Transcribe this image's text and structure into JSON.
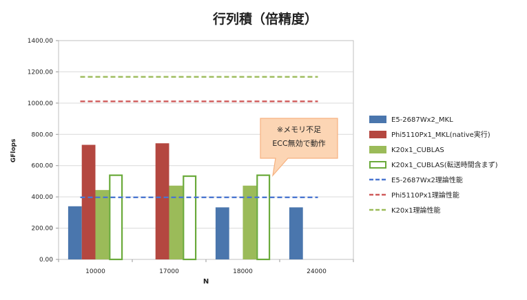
{
  "chart_data": {
    "type": "bar",
    "title": "行列積（倍精度）",
    "xlabel": "N",
    "ylabel": "GFlops",
    "categories": [
      "10000",
      "17000",
      "18000",
      "24000"
    ],
    "ylim": [
      0,
      1400
    ],
    "yticks": [
      "0.00",
      "200.00",
      "400.00",
      "600.00",
      "800.00",
      "1000.00",
      "1200.00",
      "1400.00"
    ],
    "grid": true,
    "legend_position": "right",
    "series": [
      {
        "name": "E5-2687Wx2_MKL",
        "style": "bar",
        "color": "#4a76ad",
        "values": [
          340,
          null,
          333,
          333
        ]
      },
      {
        "name": "Phi5110Px1_MKL(native実行)",
        "style": "bar",
        "color": "#b44740",
        "values": [
          733,
          743,
          null,
          null
        ]
      },
      {
        "name": "K20x1_CUBLAS",
        "style": "bar",
        "color": "#9bbb59",
        "values": [
          444,
          472,
          472,
          null
        ]
      },
      {
        "name": "K20x1_CUBLAS(転送時間含まず)",
        "style": "hollow-bar",
        "color": "#6aaa3a",
        "values": [
          543,
          537,
          543,
          null
        ]
      },
      {
        "name": "E5-2687Wx2理論性能",
        "style": "dashed-line",
        "color": "#4a76d0",
        "value": 397
      },
      {
        "name": "Phi5110Px1理論性能",
        "style": "dashed-line",
        "color": "#cf5a5a",
        "value": 1011
      },
      {
        "name": "K20x1理論性能",
        "style": "dashed-line",
        "color": "#9bbb59",
        "value": 1168
      }
    ],
    "annotation": {
      "lines": [
        "※メモリ不足",
        "ECC無効で動作"
      ],
      "fill": "#fcd5b4",
      "border": "#f6b17f"
    }
  }
}
